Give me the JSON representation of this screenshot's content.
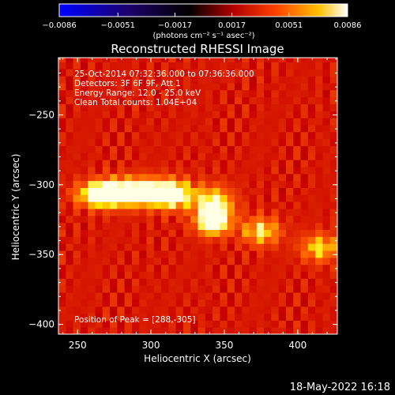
{
  "chart_data": {
    "type": "heatmap",
    "title": "Reconstructed RHESSI Image",
    "xlabel": "Heliocentric X (arcsec)",
    "ylabel": "Heliocentric Y (arcsec)",
    "xlim": [
      237,
      427
    ],
    "ylim": [
      -407,
      -209
    ],
    "xticks": [
      250,
      300,
      350,
      400
    ],
    "yticks": [
      -250,
      -300,
      -350,
      -400
    ],
    "colormap": [
      "#0000ff",
      "#000000",
      "#ff3000",
      "#ffc000",
      "#ffffff"
    ],
    "colorbar": {
      "range": [
        -0.0086,
        0.0086
      ],
      "ticks": [
        "-0.0086",
        "-0.0051",
        "-0.0017",
        "0.0017",
        "0.0051",
        "0.0086"
      ],
      "units": "(photons cm⁻² s⁻¹ asec⁻²)"
    },
    "annotations": [
      "25-Oct-2014 07:32:36.000 to 07:36:36.000",
      "Detectors: 3F 6F 9F, Att 1",
      "Energy Range: 12.0 - 25.0 keV",
      "Clean    Total counts: 1.04E+04"
    ],
    "peak_label": "Position of Peak = [288,-305]",
    "peak": [
      288,
      -305
    ],
    "sources": [
      {
        "x": 288,
        "y": -305,
        "amp": 1.0,
        "sx": 18,
        "sy": 7
      },
      {
        "x": 265,
        "y": -307,
        "amp": 0.8,
        "sx": 10,
        "sy": 6
      },
      {
        "x": 315,
        "y": -307,
        "amp": 0.75,
        "sx": 10,
        "sy": 7
      },
      {
        "x": 343,
        "y": -315,
        "amp": 0.82,
        "sx": 9,
        "sy": 9
      },
      {
        "x": 342,
        "y": -328,
        "amp": 0.7,
        "sx": 8,
        "sy": 6
      },
      {
        "x": 375,
        "y": -333,
        "amp": 0.62,
        "sx": 9,
        "sy": 7
      },
      {
        "x": 415,
        "y": -345,
        "amp": 0.58,
        "sx": 9,
        "sy": 7
      }
    ],
    "timestamp": "18-May-2022 16:18"
  }
}
